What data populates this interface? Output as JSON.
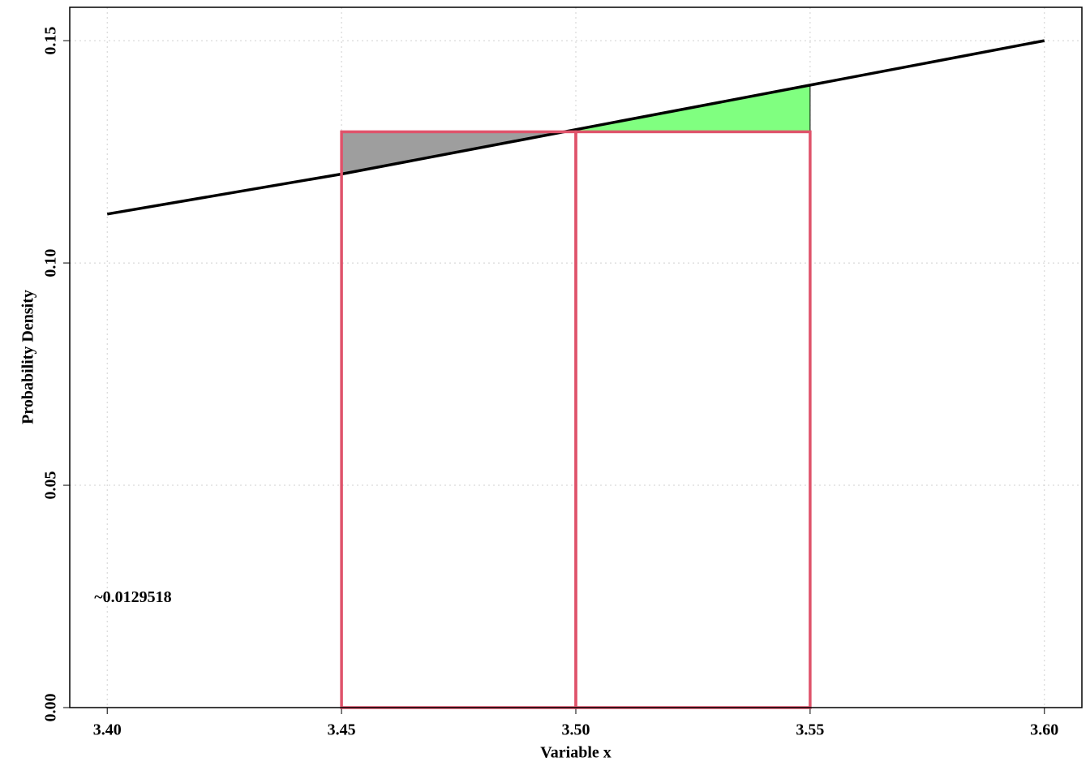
{
  "chart_data": {
    "type": "line",
    "xlabel": "Variable x",
    "ylabel": "Probability Density",
    "x": [
      3.4,
      3.45,
      3.5,
      3.55,
      3.6
    ],
    "series": [
      {
        "color": "#000000",
        "values": [
          0.111,
          0.12,
          0.13,
          0.14,
          0.15
        ]
      }
    ],
    "rectangles": [
      {
        "x": [
          3.45,
          3.5
        ],
        "height": 0.1295,
        "color": "#DF536B"
      },
      {
        "x": [
          3.5,
          3.55
        ],
        "height": 0.1295,
        "color": "#DF536B"
      }
    ],
    "fills": [
      {
        "x": [
          3.45,
          3.5
        ],
        "level": 0.1295,
        "color": "#9E9E9E"
      },
      {
        "x": [
          3.5,
          3.55
        ],
        "level": 0.1295,
        "color": "#80FF80"
      }
    ],
    "annotation": {
      "text": "~0.0129518",
      "x": 3.4,
      "y": 0.0246
    },
    "xlim": [
      3.392,
      3.608
    ],
    "ylim": [
      0,
      0.1575
    ],
    "xticks": [
      {
        "value": 3.4,
        "label": "3.40"
      },
      {
        "value": 3.45,
        "label": "3.45"
      },
      {
        "value": 3.5,
        "label": "3.50"
      },
      {
        "value": 3.55,
        "label": "3.55"
      },
      {
        "value": 3.6,
        "label": "3.60"
      }
    ],
    "yticks": [
      {
        "value": 0,
        "label": "0.00"
      },
      0.05,
      {
        "value": 0.1,
        "label": "0.10"
      },
      0.15
    ],
    "grid": true
  }
}
